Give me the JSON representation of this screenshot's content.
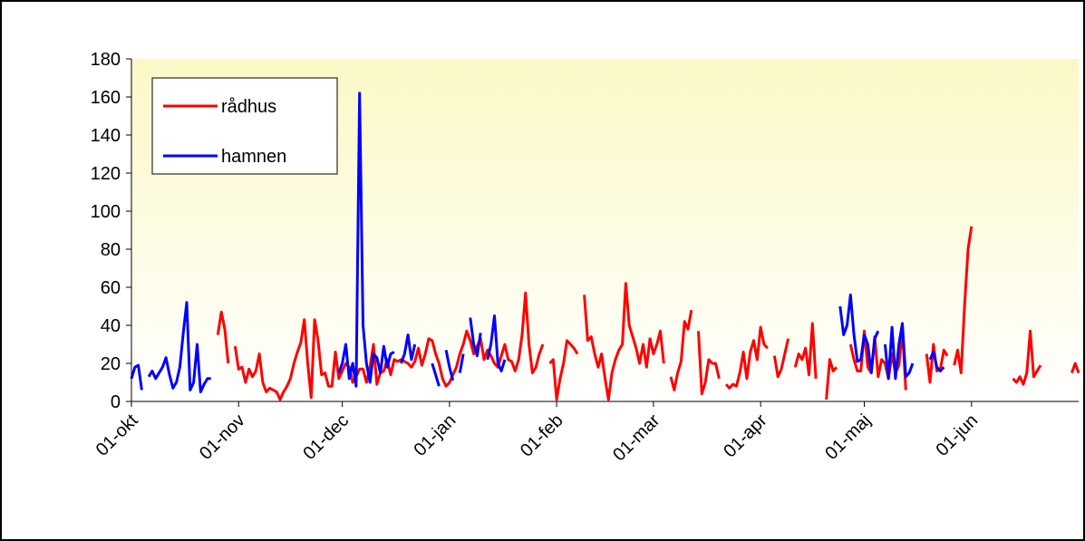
{
  "chart_data": {
    "type": "line",
    "xlim": [
      0,
      274
    ],
    "xticks": [
      {
        "value": 0,
        "label": "01-okt"
      },
      {
        "value": 31,
        "label": "01-nov"
      },
      {
        "value": 61,
        "label": "01-dec"
      },
      {
        "value": 92,
        "label": "01-jan"
      },
      {
        "value": 123,
        "label": "01-feb"
      },
      {
        "value": 151,
        "label": "01-mar"
      },
      {
        "value": 182,
        "label": "01-apr"
      },
      {
        "value": 212,
        "label": "01-maj"
      },
      {
        "value": 243,
        "label": "01-jun"
      }
    ],
    "ylim": [
      0,
      180
    ],
    "yticks": [
      0,
      20,
      40,
      60,
      80,
      100,
      120,
      140,
      160,
      180
    ],
    "legend": "upper left",
    "series": [
      {
        "name": "rådhus",
        "color": "#ff0000",
        "x": [
          25,
          26,
          27,
          28,
          29,
          30,
          31,
          32,
          33,
          34,
          35,
          36,
          37,
          38,
          39,
          40,
          41,
          42,
          43,
          44,
          45,
          46,
          47,
          48,
          49,
          50,
          51,
          52,
          53,
          54,
          55,
          56,
          57,
          58,
          59,
          60,
          61,
          62,
          63,
          64,
          65,
          66,
          67,
          68,
          69,
          70,
          71,
          72,
          73,
          74,
          75,
          76,
          77,
          78,
          79,
          80,
          81,
          82,
          83,
          84,
          85,
          86,
          87,
          88,
          89,
          90,
          91,
          92,
          93,
          94,
          95,
          96,
          97,
          98,
          99,
          100,
          101,
          102,
          103,
          104,
          105,
          106,
          107,
          108,
          109,
          110,
          111,
          112,
          113,
          114,
          115,
          116,
          117,
          118,
          119,
          120,
          121,
          122,
          123,
          124,
          125,
          126,
          127,
          128,
          129,
          130,
          131,
          132,
          133,
          134,
          135,
          136,
          137,
          138,
          139,
          140,
          141,
          142,
          143,
          144,
          145,
          146,
          147,
          148,
          149,
          150,
          151,
          152,
          153,
          154,
          155,
          156,
          157,
          158,
          159,
          160,
          161,
          162,
          163,
          164,
          165,
          166,
          167,
          168,
          169,
          170,
          171,
          172,
          173,
          174,
          175,
          176,
          177,
          178,
          179,
          180,
          181,
          182,
          183,
          184,
          185,
          186,
          187,
          188,
          189,
          190,
          191,
          192,
          193,
          194,
          195,
          196,
          197,
          198,
          199,
          200,
          201,
          202,
          203,
          204,
          205,
          206,
          207,
          208,
          209,
          210,
          211,
          212,
          213,
          214,
          215,
          216,
          217,
          218,
          219,
          220,
          221,
          222,
          223,
          224,
          225,
          226,
          227,
          228,
          229,
          230,
          231,
          232,
          233,
          234,
          235,
          236,
          237,
          238,
          239,
          240,
          241,
          242,
          243,
          244,
          245,
          246,
          247,
          248,
          249,
          250,
          251,
          252,
          253,
          254,
          255,
          256,
          257,
          258,
          259,
          260,
          261,
          262,
          263,
          264,
          265,
          266,
          267,
          268,
          269,
          270,
          271,
          272,
          273,
          274
        ],
        "values": [
          35,
          47,
          38,
          20,
          null,
          29,
          17,
          18,
          10,
          17,
          13,
          16,
          25,
          10,
          5,
          7,
          6,
          5,
          1,
          5,
          8,
          12,
          20,
          26,
          31,
          43,
          20,
          2,
          43,
          32,
          14,
          15,
          8,
          8,
          26,
          12,
          16,
          20,
          18,
          10,
          13,
          17,
          17,
          10,
          18,
          30,
          9,
          15,
          16,
          22,
          14,
          22,
          21,
          22,
          21,
          20,
          18,
          21,
          28,
          19,
          25,
          33,
          32,
          25,
          20,
          12,
          8,
          10,
          14,
          18,
          25,
          30,
          37,
          32,
          25,
          29,
          33,
          22,
          27,
          24,
          20,
          18,
          24,
          30,
          22,
          21,
          16,
          22,
          35,
          57,
          30,
          15,
          18,
          25,
          30,
          null,
          20,
          22,
          1,
          12,
          20,
          32,
          30,
          28,
          25,
          null,
          56,
          32,
          34,
          25,
          18,
          25,
          12,
          1,
          15,
          22,
          27,
          30,
          62,
          40,
          34,
          28,
          20,
          30,
          18,
          33,
          25,
          30,
          37,
          20,
          null,
          13,
          6,
          15,
          21,
          42,
          38,
          48,
          null,
          37,
          4,
          10,
          22,
          20,
          20,
          12,
          null,
          9,
          7,
          9,
          8,
          15,
          26,
          12,
          26,
          32,
          22,
          39,
          30,
          28,
          null,
          24,
          13,
          17,
          25,
          33,
          null,
          18,
          25,
          22,
          28,
          14,
          41,
          12,
          null,
          null,
          1,
          22,
          16,
          18,
          null,
          null,
          null,
          30,
          22,
          16,
          16,
          37,
          18,
          15,
          34,
          13,
          22,
          20,
          12,
          25,
          15,
          19,
          38,
          6,
          null,
          null,
          null,
          null,
          null,
          25,
          10,
          30,
          16,
          17,
          27,
          24,
          null,
          19,
          27,
          15,
          50,
          80,
          92,
          null,
          null,
          null,
          null,
          null,
          null,
          null,
          null,
          null,
          null,
          null,
          12,
          10,
          13,
          9,
          15,
          37,
          13,
          16,
          19,
          null,
          null,
          null,
          null,
          null,
          null,
          null,
          null,
          15,
          20,
          15
        ]
      },
      {
        "name": "hamnen",
        "color": "#0000ff",
        "x": [
          0,
          1,
          2,
          3,
          4,
          5,
          6,
          7,
          9,
          10,
          11,
          12,
          13,
          14,
          15,
          16,
          17,
          18,
          19,
          20,
          21,
          22,
          23,
          40,
          60,
          61,
          62,
          63,
          64,
          65,
          66,
          67,
          68,
          69,
          70,
          71,
          72,
          73,
          74,
          75,
          76,
          77,
          78,
          79,
          80,
          81,
          82,
          83,
          87,
          88,
          89,
          90,
          91,
          92,
          93,
          94,
          95,
          96,
          97,
          98,
          99,
          100,
          101,
          102,
          103,
          104,
          105,
          106,
          107,
          108,
          150,
          205,
          206,
          207,
          208,
          209,
          210,
          211,
          212,
          213,
          214,
          215,
          216,
          217,
          218,
          219,
          220,
          221,
          222,
          223,
          224,
          225,
          226,
          228,
          231,
          232,
          233,
          234,
          235
        ],
        "values": [
          12,
          18,
          19,
          6,
          null,
          13,
          16,
          12,
          18,
          23,
          14,
          7,
          10,
          18,
          36,
          52,
          6,
          10,
          30,
          5,
          9,
          12,
          12,
          null,
          15,
          20,
          30,
          12,
          20,
          8,
          162,
          40,
          20,
          10,
          25,
          23,
          15,
          29,
          18,
          25,
          26,
          null,
          20,
          25,
          35,
          22,
          30,
          null,
          20,
          14,
          8,
          null,
          27,
          18,
          11,
          null,
          15,
          25,
          null,
          44,
          30,
          24,
          36,
          null,
          22,
          30,
          45,
          20,
          16,
          22,
          null,
          50,
          35,
          40,
          56,
          35,
          21,
          22,
          35,
          30,
          15,
          33,
          37,
          null,
          30,
          12,
          39,
          12,
          30,
          41,
          13,
          15,
          20,
          null,
          22,
          26,
          18,
          16,
          18
        ]
      }
    ]
  }
}
